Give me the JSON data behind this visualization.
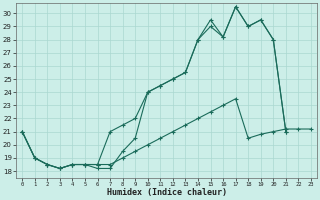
{
  "title": "",
  "xlabel": "Humidex (Indice chaleur)",
  "bg_color": "#cceee8",
  "grid_color": "#aad8d0",
  "line_color": "#1a6b5a",
  "xlim": [
    -0.5,
    23.5
  ],
  "ylim": [
    17.5,
    30.8
  ],
  "xticks": [
    0,
    1,
    2,
    3,
    4,
    5,
    6,
    7,
    8,
    9,
    10,
    11,
    12,
    13,
    14,
    15,
    16,
    17,
    18,
    19,
    20,
    21,
    22,
    23
  ],
  "yticks": [
    18,
    19,
    20,
    21,
    22,
    23,
    24,
    25,
    26,
    27,
    28,
    29,
    30
  ],
  "line1_x": [
    0,
    1,
    2,
    3,
    4,
    5,
    6,
    7,
    8,
    9,
    10,
    11,
    12,
    13,
    14,
    15,
    16,
    17,
    18,
    19,
    20,
    21
  ],
  "line1_y": [
    21,
    19,
    18.5,
    18.2,
    18.5,
    18.5,
    18.2,
    18.2,
    19.5,
    20.5,
    24,
    24.5,
    25,
    25.5,
    28,
    29.5,
    28.2,
    30.5,
    29.0,
    29.5,
    28,
    21
  ],
  "line2_x": [
    0,
    1,
    2,
    3,
    4,
    5,
    6,
    7,
    8,
    9,
    10,
    11,
    12,
    13,
    14,
    15,
    16,
    17,
    18,
    19,
    20,
    21
  ],
  "line2_y": [
    21,
    19,
    18.5,
    18.2,
    18.5,
    18.5,
    18.5,
    21.0,
    21.5,
    22,
    24,
    24.5,
    25,
    25.5,
    28,
    29.0,
    28.2,
    30.5,
    29.0,
    29.5,
    28,
    21
  ],
  "line3_x": [
    0,
    1,
    2,
    3,
    4,
    5,
    6,
    7,
    8,
    9,
    10,
    11,
    12,
    13,
    14,
    15,
    16,
    17,
    18,
    19,
    20,
    21,
    22,
    23
  ],
  "line3_y": [
    21,
    19,
    18.5,
    18.2,
    18.5,
    18.5,
    18.5,
    18.5,
    19.0,
    19.5,
    20.0,
    20.5,
    21.0,
    21.5,
    22.0,
    22.5,
    23.0,
    23.5,
    20.5,
    20.8,
    21.0,
    21.2,
    21.2,
    21.2
  ]
}
